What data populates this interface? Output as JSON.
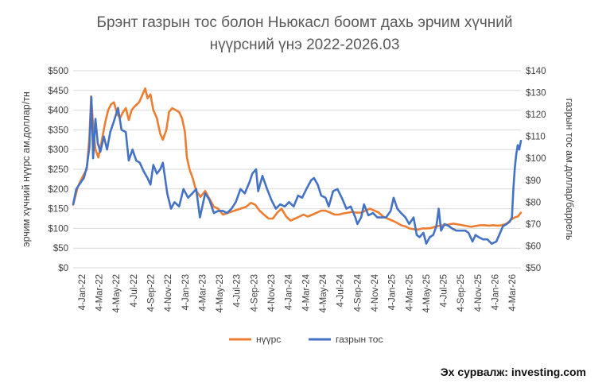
{
  "chart_data": {
    "type": "line",
    "title_lines": [
      "Брэнт газрын тос болон Ньюкасл боомт дахь эрчим хүчний",
      "нүүрсний үнэ 2022-2026.03"
    ],
    "ylabel_left": "эрчим хүчний нүүрс ам.доллар/тн",
    "ylabel_right": "газрын тос ам.доллар/баррель",
    "y_left": {
      "min": 0,
      "max": 500,
      "step": 50,
      "tick_labels": [
        "$0",
        "$50",
        "$100",
        "$150",
        "$200",
        "$250",
        "$300",
        "$350",
        "$400",
        "$450",
        "$500"
      ]
    },
    "y_right": {
      "min": 50,
      "max": 140,
      "step": 10,
      "tick_labels": [
        "$50",
        "$60",
        "$70",
        "$80",
        "$90",
        "$100",
        "$110",
        "$120",
        "$130",
        "$140"
      ]
    },
    "x_categories": [
      "4-Jan-22",
      "4-Mar-22",
      "4-May-22",
      "4-Jul-22",
      "4-Sep-22",
      "4-Nov-22",
      "4-Jan-23",
      "4-Mar-23",
      "4-May-23",
      "4-Jul-23",
      "4-Sep-23",
      "4-Nov-23",
      "4-Jan-24",
      "4-Mar-24",
      "4-May-24",
      "4-Jul-24",
      "4-Sep-24",
      "4-Nov-24",
      "4-Jan-25",
      "4-Mar-25",
      "4-May-25",
      "4-Jul-25",
      "4-Sep-25",
      "4-Nov-25",
      "4-Jan-26",
      "4-Mar-26"
    ],
    "x_range": [
      "2022-01-04",
      "2026-03-31"
    ],
    "gridlines": true,
    "legend_position": "bottom",
    "series": [
      {
        "name": "нүүрс",
        "axis": "left",
        "color": "#ED7D31",
        "points": [
          [
            "2022-01-04",
            160
          ],
          [
            "2022-01-20",
            205
          ],
          [
            "2022-02-05",
            230
          ],
          [
            "2022-02-20",
            250
          ],
          [
            "2022-03-01",
            330
          ],
          [
            "2022-03-07",
            435
          ],
          [
            "2022-03-14",
            360
          ],
          [
            "2022-03-22",
            300
          ],
          [
            "2022-04-01",
            280
          ],
          [
            "2022-04-12",
            320
          ],
          [
            "2022-04-25",
            370
          ],
          [
            "2022-05-05",
            400
          ],
          [
            "2022-05-15",
            415
          ],
          [
            "2022-05-25",
            420
          ],
          [
            "2022-06-05",
            390
          ],
          [
            "2022-06-15",
            380
          ],
          [
            "2022-06-25",
            395
          ],
          [
            "2022-07-05",
            405
          ],
          [
            "2022-07-15",
            375
          ],
          [
            "2022-07-25",
            400
          ],
          [
            "2022-08-05",
            410
          ],
          [
            "2022-08-20",
            420
          ],
          [
            "2022-09-01",
            440
          ],
          [
            "2022-09-10",
            455
          ],
          [
            "2022-09-18",
            430
          ],
          [
            "2022-09-28",
            440
          ],
          [
            "2022-10-08",
            400
          ],
          [
            "2022-10-20",
            380
          ],
          [
            "2022-11-01",
            340
          ],
          [
            "2022-11-10",
            325
          ],
          [
            "2022-11-22",
            350
          ],
          [
            "2022-12-01",
            395
          ],
          [
            "2022-12-12",
            405
          ],
          [
            "2022-12-25",
            400
          ],
          [
            "2023-01-05",
            395
          ],
          [
            "2023-01-15",
            380
          ],
          [
            "2023-01-25",
            345
          ],
          [
            "2023-02-01",
            280
          ],
          [
            "2023-02-10",
            250
          ],
          [
            "2023-02-22",
            225
          ],
          [
            "2023-03-05",
            195
          ],
          [
            "2023-03-20",
            180
          ],
          [
            "2023-04-05",
            195
          ],
          [
            "2023-04-20",
            175
          ],
          [
            "2023-05-05",
            155
          ],
          [
            "2023-05-20",
            150
          ],
          [
            "2023-06-05",
            135
          ],
          [
            "2023-06-25",
            140
          ],
          [
            "2023-07-15",
            145
          ],
          [
            "2023-08-05",
            150
          ],
          [
            "2023-08-25",
            155
          ],
          [
            "2023-09-10",
            165
          ],
          [
            "2023-09-25",
            160
          ],
          [
            "2023-10-10",
            145
          ],
          [
            "2023-10-25",
            135
          ],
          [
            "2023-11-10",
            125
          ],
          [
            "2023-11-25",
            125
          ],
          [
            "2023-12-10",
            140
          ],
          [
            "2023-12-25",
            150
          ],
          [
            "2024-01-10",
            130
          ],
          [
            "2024-01-25",
            120
          ],
          [
            "2024-02-10",
            125
          ],
          [
            "2024-02-25",
            130
          ],
          [
            "2024-03-10",
            135
          ],
          [
            "2024-03-25",
            130
          ],
          [
            "2024-04-10",
            135
          ],
          [
            "2024-04-25",
            140
          ],
          [
            "2024-05-10",
            145
          ],
          [
            "2024-05-25",
            145
          ],
          [
            "2024-06-10",
            140
          ],
          [
            "2024-06-25",
            135
          ],
          [
            "2024-07-10",
            135
          ],
          [
            "2024-07-25",
            138
          ],
          [
            "2024-08-10",
            140
          ],
          [
            "2024-08-25",
            142
          ],
          [
            "2024-09-10",
            140
          ],
          [
            "2024-09-25",
            140
          ],
          [
            "2024-10-10",
            145
          ],
          [
            "2024-10-25",
            150
          ],
          [
            "2024-11-10",
            145
          ],
          [
            "2024-11-25",
            140
          ],
          [
            "2024-12-10",
            130
          ],
          [
            "2024-12-25",
            125
          ],
          [
            "2025-01-10",
            120
          ],
          [
            "2025-01-25",
            115
          ],
          [
            "2025-02-10",
            108
          ],
          [
            "2025-02-25",
            105
          ],
          [
            "2025-03-10",
            100
          ],
          [
            "2025-03-25",
            98
          ],
          [
            "2025-04-10",
            97
          ],
          [
            "2025-04-25",
            100
          ],
          [
            "2025-05-10",
            100
          ],
          [
            "2025-05-25",
            101
          ],
          [
            "2025-06-10",
            105
          ],
          [
            "2025-06-25",
            107
          ],
          [
            "2025-07-10",
            108
          ],
          [
            "2025-07-25",
            110
          ],
          [
            "2025-08-10",
            112
          ],
          [
            "2025-08-25",
            110
          ],
          [
            "2025-09-10",
            108
          ],
          [
            "2025-09-25",
            106
          ],
          [
            "2025-10-10",
            104
          ],
          [
            "2025-10-25",
            106
          ],
          [
            "2025-11-10",
            108
          ],
          [
            "2025-11-25",
            108
          ],
          [
            "2025-12-10",
            107
          ],
          [
            "2025-12-25",
            108
          ],
          [
            "2026-01-10",
            107
          ],
          [
            "2026-01-25",
            108
          ],
          [
            "2026-02-10",
            112
          ],
          [
            "2026-02-25",
            122
          ],
          [
            "2026-03-10",
            128
          ],
          [
            "2026-03-20",
            130
          ],
          [
            "2026-03-31",
            140
          ]
        ]
      },
      {
        "name": "газрын тос",
        "axis": "right",
        "color": "#4472C4",
        "points": [
          [
            "2022-01-04",
            79
          ],
          [
            "2022-01-15",
            86
          ],
          [
            "2022-01-30",
            89
          ],
          [
            "2022-02-10",
            91
          ],
          [
            "2022-02-20",
            96
          ],
          [
            "2022-03-01",
            105
          ],
          [
            "2022-03-08",
            128
          ],
          [
            "2022-03-14",
            100
          ],
          [
            "2022-03-22",
            118
          ],
          [
            "2022-03-30",
            107
          ],
          [
            "2022-04-08",
            103
          ],
          [
            "2022-04-20",
            110
          ],
          [
            "2022-05-01",
            104
          ],
          [
            "2022-05-12",
            112
          ],
          [
            "2022-05-25",
            117
          ],
          [
            "2022-06-08",
            123
          ],
          [
            "2022-06-20",
            113
          ],
          [
            "2022-07-05",
            112
          ],
          [
            "2022-07-15",
            99
          ],
          [
            "2022-07-28",
            104
          ],
          [
            "2022-08-10",
            99
          ],
          [
            "2022-08-22",
            98
          ],
          [
            "2022-09-05",
            94
          ],
          [
            "2022-09-18",
            91
          ],
          [
            "2022-09-28",
            88
          ],
          [
            "2022-10-08",
            97
          ],
          [
            "2022-10-20",
            93
          ],
          [
            "2022-11-01",
            95
          ],
          [
            "2022-11-10",
            98
          ],
          [
            "2022-11-25",
            84
          ],
          [
            "2022-12-08",
            77
          ],
          [
            "2022-12-20",
            80
          ],
          [
            "2023-01-05",
            78
          ],
          [
            "2023-01-20",
            86
          ],
          [
            "2023-02-05",
            82
          ],
          [
            "2023-02-20",
            84
          ],
          [
            "2023-03-05",
            86
          ],
          [
            "2023-03-18",
            73
          ],
          [
            "2023-04-05",
            84
          ],
          [
            "2023-04-20",
            81
          ],
          [
            "2023-05-05",
            75
          ],
          [
            "2023-05-20",
            76
          ],
          [
            "2023-06-05",
            76
          ],
          [
            "2023-06-20",
            75
          ],
          [
            "2023-07-05",
            77
          ],
          [
            "2023-07-20",
            80
          ],
          [
            "2023-08-05",
            86
          ],
          [
            "2023-08-20",
            84
          ],
          [
            "2023-09-05",
            89
          ],
          [
            "2023-09-15",
            93
          ],
          [
            "2023-09-28",
            95
          ],
          [
            "2023-10-05",
            85
          ],
          [
            "2023-10-20",
            92
          ],
          [
            "2023-11-05",
            86
          ],
          [
            "2023-11-20",
            81
          ],
          [
            "2023-12-05",
            77
          ],
          [
            "2023-12-20",
            79
          ],
          [
            "2024-01-05",
            78
          ],
          [
            "2024-01-20",
            80
          ],
          [
            "2024-02-05",
            78
          ],
          [
            "2024-02-20",
            83
          ],
          [
            "2024-03-05",
            82
          ],
          [
            "2024-03-20",
            86
          ],
          [
            "2024-04-05",
            90
          ],
          [
            "2024-04-15",
            91
          ],
          [
            "2024-04-28",
            88
          ],
          [
            "2024-05-10",
            83
          ],
          [
            "2024-05-25",
            82
          ],
          [
            "2024-06-05",
            78
          ],
          [
            "2024-06-20",
            85
          ],
          [
            "2024-07-05",
            86
          ],
          [
            "2024-07-20",
            82
          ],
          [
            "2024-08-05",
            77
          ],
          [
            "2024-08-20",
            78
          ],
          [
            "2024-09-05",
            73
          ],
          [
            "2024-09-12",
            70
          ],
          [
            "2024-09-25",
            73
          ],
          [
            "2024-10-05",
            79
          ],
          [
            "2024-10-20",
            74
          ],
          [
            "2024-11-05",
            75
          ],
          [
            "2024-11-20",
            73
          ],
          [
            "2024-12-05",
            73
          ],
          [
            "2024-12-20",
            73
          ],
          [
            "2025-01-05",
            76
          ],
          [
            "2025-01-15",
            82
          ],
          [
            "2025-01-28",
            77
          ],
          [
            "2025-02-10",
            75
          ],
          [
            "2025-02-25",
            73
          ],
          [
            "2025-03-10",
            70
          ],
          [
            "2025-03-25",
            73
          ],
          [
            "2025-04-05",
            65
          ],
          [
            "2025-04-15",
            64
          ],
          [
            "2025-04-28",
            66
          ],
          [
            "2025-05-08",
            61
          ],
          [
            "2025-05-20",
            64
          ],
          [
            "2025-06-01",
            65
          ],
          [
            "2025-06-12",
            69
          ],
          [
            "2025-06-20",
            77
          ],
          [
            "2025-06-28",
            67
          ],
          [
            "2025-07-10",
            70
          ],
          [
            "2025-07-25",
            69
          ],
          [
            "2025-08-05",
            68
          ],
          [
            "2025-08-20",
            67
          ],
          [
            "2025-09-05",
            67
          ],
          [
            "2025-09-20",
            67
          ],
          [
            "2025-10-01",
            66
          ],
          [
            "2025-10-15",
            62
          ],
          [
            "2025-10-25",
            65
          ],
          [
            "2025-11-05",
            64
          ],
          [
            "2025-11-20",
            63
          ],
          [
            "2025-12-05",
            63
          ],
          [
            "2025-12-20",
            61
          ],
          [
            "2026-01-05",
            62
          ],
          [
            "2026-01-15",
            65
          ],
          [
            "2026-01-28",
            69
          ],
          [
            "2026-02-10",
            70
          ],
          [
            "2026-02-20",
            71
          ],
          [
            "2026-02-28",
            73
          ],
          [
            "2026-03-05",
            86
          ],
          [
            "2026-03-10",
            96
          ],
          [
            "2026-03-15",
            102
          ],
          [
            "2026-03-20",
            106
          ],
          [
            "2026-03-25",
            104
          ],
          [
            "2026-03-31",
            108
          ]
        ]
      }
    ]
  },
  "source_note": "Эх сурвалж: investing.com"
}
